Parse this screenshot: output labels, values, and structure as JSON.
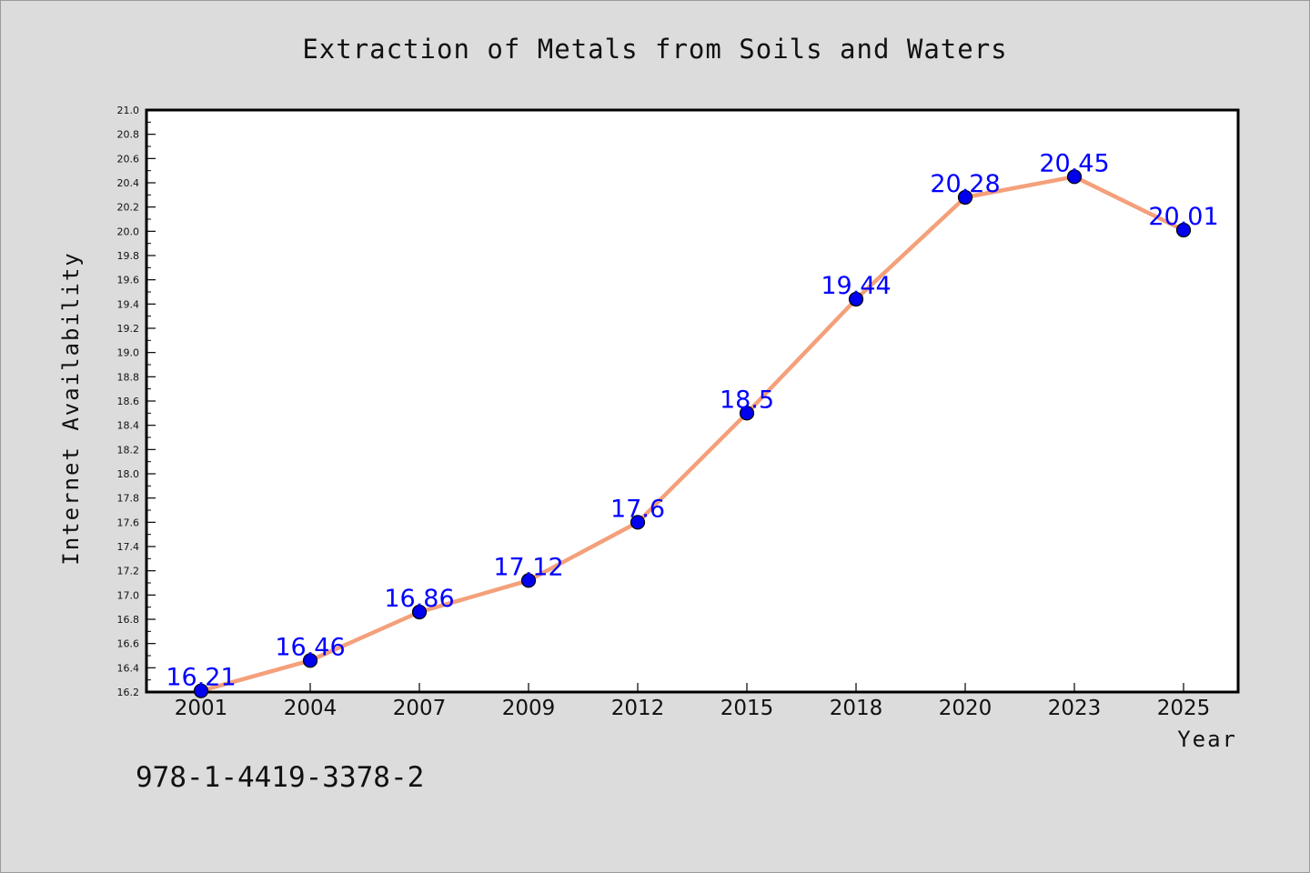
{
  "chart_data": {
    "type": "line",
    "title": "Extraction of Metals from Soils and Waters",
    "xlabel": "Year",
    "ylabel": "Internet Availability",
    "categories": [
      "2001",
      "2004",
      "2007",
      "2009",
      "2012",
      "2015",
      "2018",
      "2020",
      "2023",
      "2025"
    ],
    "series": [
      {
        "values": [
          16.21,
          16.46,
          16.86,
          17.12,
          17.6,
          18.5,
          19.44,
          20.28,
          20.45,
          20.01
        ],
        "labels": [
          "16.21",
          "16.46",
          "16.86",
          "17.12",
          "17.6",
          "18.5",
          "19.44",
          "20.28",
          "20.45",
          "20.01"
        ],
        "line_color": "#f4a07a",
        "marker_color": "#0000ee",
        "label_color": "#0000ff"
      }
    ],
    "ylim": [
      16.2,
      21.0
    ],
    "yticks": [
      "16.2",
      "16.4",
      "16.6",
      "16.8",
      "17.0",
      "17.2",
      "17.4",
      "17.6",
      "17.8",
      "18.0",
      "18.2",
      "18.4",
      "18.6",
      "18.8",
      "19.0",
      "19.2",
      "19.4",
      "19.6",
      "19.8",
      "20.0",
      "20.2",
      "20.4",
      "20.6",
      "20.8",
      "21.0"
    ],
    "grid": false,
    "legend": "none"
  },
  "footer_text": "978-1-4419-3378-2",
  "colors": {
    "background": "#dcdcdc",
    "plot_background": "#ffffff"
  }
}
